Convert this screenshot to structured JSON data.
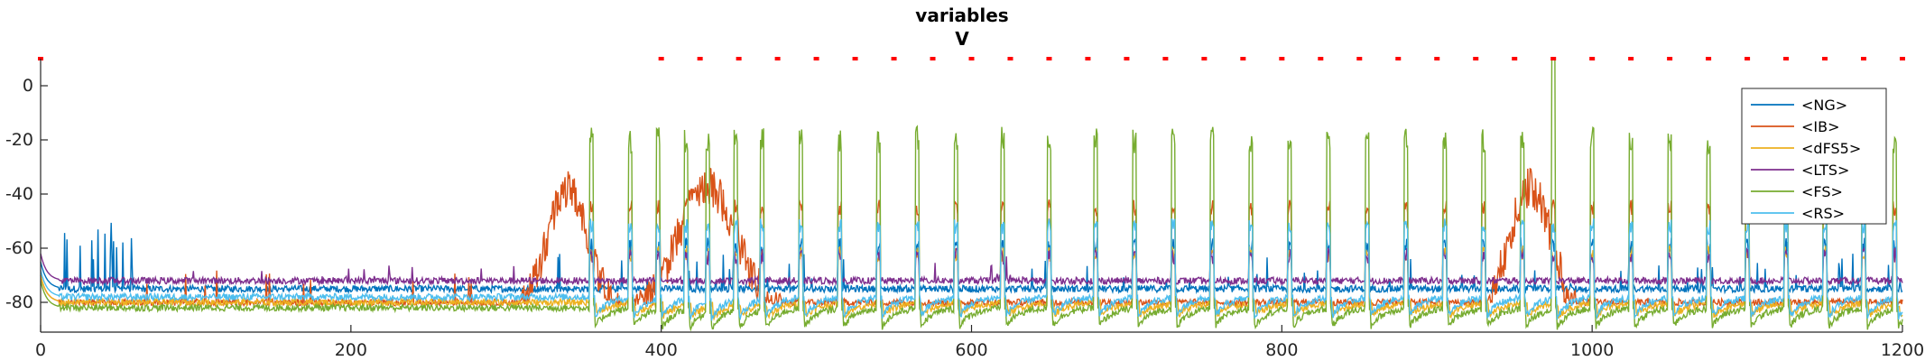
{
  "chart_data": {
    "type": "line",
    "title": [
      "variables",
      "V"
    ],
    "xlabel": "",
    "ylabel": "",
    "xlim": [
      0,
      1200
    ],
    "ylim": [
      -91,
      10
    ],
    "xticks": [
      0,
      200,
      400,
      600,
      800,
      1000,
      1200
    ],
    "yticks": [
      0,
      -20,
      -40,
      -60,
      -80
    ],
    "grid": false,
    "legend_position": "top-right",
    "series": [
      {
        "name": "<NG>",
        "color": "#0072BD",
        "baseline": -75,
        "early_burst": true,
        "spike_peak": -62
      },
      {
        "name": "<IB>",
        "color": "#D95319",
        "baseline": -80,
        "burst_centers": [
          340,
          430,
          960
        ],
        "spike_peak": -48
      },
      {
        "name": "<dFS5>",
        "color": "#EDB120",
        "baseline": -80,
        "spike_peak": -65
      },
      {
        "name": "<LTS>",
        "color": "#7E2F8E",
        "baseline": -72,
        "spike_peak": -66
      },
      {
        "name": "<FS>",
        "color": "#77AC30",
        "baseline": -82,
        "spike_peak": -25
      },
      {
        "name": "<RS>",
        "color": "#4DBEEE",
        "baseline": -78,
        "spike_peak": -55
      }
    ],
    "population_spike_times": [
      355,
      380,
      398,
      416,
      430,
      448,
      465,
      490,
      515,
      540,
      565,
      590,
      620,
      650,
      680,
      705,
      730,
      755,
      780,
      805,
      830,
      855,
      880,
      905,
      930,
      955,
      975,
      1000,
      1025,
      1050,
      1075,
      1100,
      1125,
      1150,
      1175,
      1195
    ],
    "marker_series": {
      "color": "#FF0000",
      "y": 10,
      "x": [
        0,
        400,
        425,
        450,
        475,
        500,
        525,
        550,
        575,
        600,
        625,
        650,
        675,
        700,
        725,
        750,
        775,
        800,
        825,
        850,
        875,
        900,
        925,
        950,
        975,
        1000,
        1025,
        1050,
        1075,
        1100,
        1125,
        1150,
        1175,
        1200
      ]
    }
  }
}
